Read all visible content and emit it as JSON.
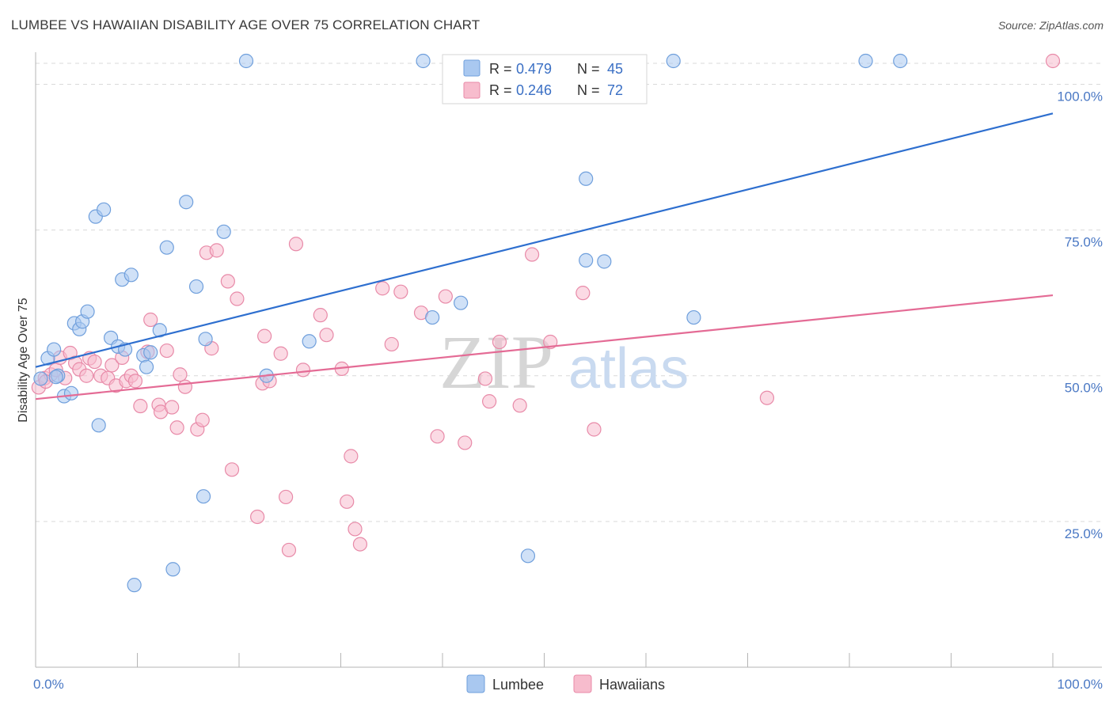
{
  "title": "LUMBEE VS HAWAIIAN DISABILITY AGE OVER 75 CORRELATION CHART",
  "source": "Source: ZipAtlas.com",
  "watermark": {
    "part1": "ZIP",
    "part2": "atlas"
  },
  "colors": {
    "lumbee_fill": "#a9c8f0",
    "lumbee_stroke": "#6f9fdc",
    "lumbee_line": "#2e6fcf",
    "hawaiian_fill": "#f7bccd",
    "hawaiian_stroke": "#e88aa8",
    "hawaiian_line": "#e46b95",
    "grid": "#d9d9d9",
    "tick_label": "#4a78c4"
  },
  "legend": {
    "rows": [
      {
        "r_label": "R = ",
        "r_value": "0.479",
        "n_label": "N = ",
        "n_value": "45"
      },
      {
        "r_label": "R = ",
        "r_value": "0.246",
        "n_label": "N = ",
        "n_value": "72"
      }
    ]
  },
  "chart_data": {
    "type": "scatter",
    "title": "LUMBEE VS HAWAIIAN DISABILITY AGE OVER 75 CORRELATION CHART",
    "xlabel": "",
    "ylabel": "Disability Age Over 75",
    "xlim": [
      0,
      100
    ],
    "ylim": [
      0,
      104
    ],
    "x_ticks": [
      "0.0%",
      "100.0%"
    ],
    "y_ticks": [
      "25.0%",
      "50.0%",
      "75.0%",
      "100.0%"
    ],
    "y_tick_values": [
      25,
      50,
      75,
      100
    ],
    "grid": true,
    "legend_position": "top-center",
    "series": [
      {
        "name": "Lumbee",
        "r": 0.479,
        "n": 45,
        "trend": {
          "x": [
            0,
            100
          ],
          "y": [
            51.5,
            95
          ]
        },
        "points": [
          [
            0.5,
            49.5
          ],
          [
            1.2,
            53
          ],
          [
            1.8,
            54.5
          ],
          [
            2.2,
            50
          ],
          [
            2.8,
            46.5
          ],
          [
            3.5,
            47
          ],
          [
            3.8,
            59
          ],
          [
            4.3,
            58
          ],
          [
            4.6,
            59.3
          ],
          [
            5.1,
            61
          ],
          [
            5.9,
            77.3
          ],
          [
            6.7,
            78.5
          ],
          [
            7.4,
            56.5
          ],
          [
            8.1,
            55
          ],
          [
            8.5,
            66.5
          ],
          [
            8.8,
            54.5
          ],
          [
            9.4,
            67.3
          ],
          [
            9.7,
            14.1
          ],
          [
            10.6,
            53.5
          ],
          [
            10.9,
            51.5
          ],
          [
            11.3,
            54
          ],
          [
            12.2,
            57.8
          ],
          [
            12.9,
            72
          ],
          [
            13.5,
            16.8
          ],
          [
            14.8,
            79.8
          ],
          [
            15.8,
            65.3
          ],
          [
            16.5,
            29.3
          ],
          [
            16.7,
            56.3
          ],
          [
            18.5,
            74.7
          ],
          [
            20.7,
            104
          ],
          [
            22.7,
            50
          ],
          [
            26.9,
            55.9
          ],
          [
            38.1,
            104
          ],
          [
            39.0,
            60
          ],
          [
            41.8,
            62.5
          ],
          [
            48.4,
            19.1
          ],
          [
            54.1,
            83.8
          ],
          [
            54.1,
            69.8
          ],
          [
            55.9,
            69.6
          ],
          [
            62.7,
            104
          ],
          [
            64.7,
            60
          ],
          [
            81.6,
            104
          ],
          [
            85.0,
            104
          ],
          [
            2.0,
            49.8
          ],
          [
            6.2,
            41.5
          ]
        ]
      },
      {
        "name": "Hawaiians",
        "r": 0.246,
        "n": 72,
        "trend": {
          "x": [
            0,
            100
          ],
          "y": [
            46,
            63.8
          ]
        },
        "points": [
          [
            0.3,
            48
          ],
          [
            0.9,
            49.6
          ],
          [
            1.5,
            50.2
          ],
          [
            2.0,
            51
          ],
          [
            2.4,
            53.1
          ],
          [
            2.9,
            49.6
          ],
          [
            3.4,
            53.9
          ],
          [
            3.9,
            52.2
          ],
          [
            4.3,
            51.1
          ],
          [
            5.0,
            50
          ],
          [
            5.3,
            53
          ],
          [
            5.8,
            52.4
          ],
          [
            6.4,
            50
          ],
          [
            7.1,
            49.6
          ],
          [
            7.5,
            51.8
          ],
          [
            7.9,
            48.3
          ],
          [
            8.5,
            53.1
          ],
          [
            8.9,
            49.1
          ],
          [
            9.4,
            50
          ],
          [
            9.8,
            49.1
          ],
          [
            10.3,
            44.8
          ],
          [
            11.0,
            54.1
          ],
          [
            11.3,
            59.6
          ],
          [
            12.1,
            45
          ],
          [
            12.3,
            43.8
          ],
          [
            12.9,
            54.3
          ],
          [
            13.4,
            44.6
          ],
          [
            13.9,
            41.1
          ],
          [
            14.2,
            50.2
          ],
          [
            14.7,
            48.1
          ],
          [
            15.9,
            40.8
          ],
          [
            16.4,
            42.4
          ],
          [
            16.8,
            71.1
          ],
          [
            17.3,
            54.7
          ],
          [
            17.8,
            71.5
          ],
          [
            18.9,
            66.2
          ],
          [
            19.3,
            33.9
          ],
          [
            19.8,
            63.2
          ],
          [
            21.8,
            25.8
          ],
          [
            22.3,
            48.7
          ],
          [
            22.5,
            56.8
          ],
          [
            23.0,
            49.1
          ],
          [
            24.1,
            53.8
          ],
          [
            24.6,
            29.2
          ],
          [
            24.9,
            20.1
          ],
          [
            25.6,
            72.6
          ],
          [
            26.3,
            51
          ],
          [
            28.0,
            60.4
          ],
          [
            28.6,
            57
          ],
          [
            30.1,
            51.2
          ],
          [
            30.6,
            28.4
          ],
          [
            31.0,
            36.2
          ],
          [
            31.4,
            23.7
          ],
          [
            31.9,
            21.1
          ],
          [
            34.1,
            65
          ],
          [
            35.0,
            55.4
          ],
          [
            35.9,
            64.4
          ],
          [
            37.9,
            60.8
          ],
          [
            39.5,
            39.6
          ],
          [
            40.3,
            63.6
          ],
          [
            42.2,
            38.5
          ],
          [
            44.2,
            49.5
          ],
          [
            44.6,
            45.6
          ],
          [
            45.6,
            55.8
          ],
          [
            47.6,
            44.9
          ],
          [
            48.8,
            70.8
          ],
          [
            50.6,
            55.8
          ],
          [
            53.8,
            64.2
          ],
          [
            54.9,
            40.8
          ],
          [
            71.9,
            46.2
          ],
          [
            100,
            104
          ],
          [
            1.0,
            49
          ]
        ]
      }
    ]
  },
  "bottom_legend": [
    "Lumbee",
    "Hawaiians"
  ]
}
